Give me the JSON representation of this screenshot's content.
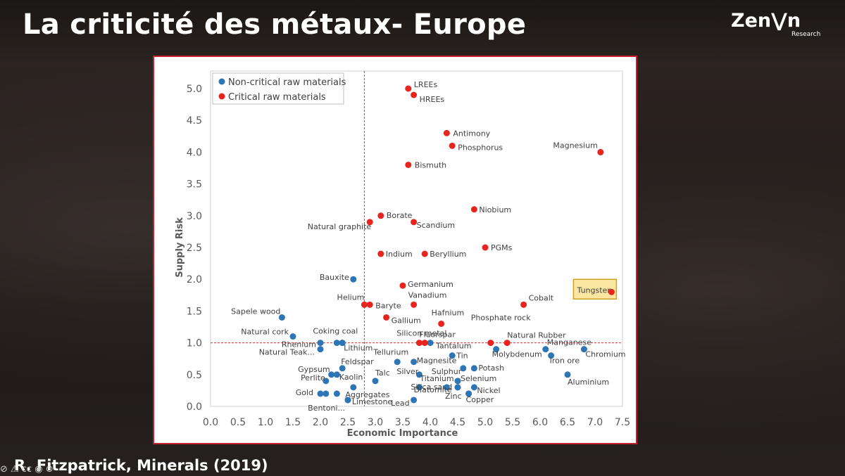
{
  "slide": {
    "title": "La criticité des métaux- Europe",
    "citation": "R. Fitzpatrick, Minerals (2019)",
    "logo_main": "Zen⋁n",
    "logo_sub": "Research",
    "cc_icons": "⊘ ⚠ cc ◉ ⊙"
  },
  "chart_data": {
    "type": "scatter",
    "title": "",
    "xlabel": "Economic Importance",
    "ylabel": "Supply Risk",
    "xlim": [
      0,
      7.5
    ],
    "ylim": [
      0,
      5.0
    ],
    "xticks": [
      "0.0",
      "0.5",
      "1.0",
      "1.5",
      "2.0",
      "2.5",
      "3.0",
      "3.5",
      "4.0",
      "4.5",
      "5.0",
      "5.5",
      "6.0",
      "6.5",
      "7.0",
      "7.5"
    ],
    "yticks": [
      "0.0",
      "0.5",
      "1.0",
      "1.5",
      "2.0",
      "2.5",
      "3.0",
      "3.5",
      "4.0",
      "4.5",
      "5.0"
    ],
    "thresholds": {
      "x": 2.8,
      "y": 1.0
    },
    "legend": [
      "Non-critical raw materials",
      "Critical raw materials"
    ],
    "colors": {
      "non_critical": "#2e75b6",
      "critical": "#e8241f",
      "threshold": "#d9302b",
      "highlight_fill": "#fbe6a2",
      "highlight_border": "#c9a227"
    },
    "highlight": "Tungsten",
    "series": [
      {
        "name": "Critical raw materials",
        "points": [
          {
            "label": "LREEs",
            "x": 3.6,
            "y": 5.0
          },
          {
            "label": "HREEs",
            "x": 3.7,
            "y": 4.9
          },
          {
            "label": "Antimony",
            "x": 4.3,
            "y": 4.3
          },
          {
            "label": "Phosphorus",
            "x": 4.4,
            "y": 4.1
          },
          {
            "label": "Magnesium",
            "x": 7.1,
            "y": 4.0
          },
          {
            "label": "Bismuth",
            "x": 3.6,
            "y": 3.8
          },
          {
            "label": "Niobium",
            "x": 4.8,
            "y": 3.1
          },
          {
            "label": "Borate",
            "x": 3.1,
            "y": 3.0
          },
          {
            "label": "Natural graphite",
            "x": 2.9,
            "y": 2.9
          },
          {
            "label": "Scandium",
            "x": 3.7,
            "y": 2.9
          },
          {
            "label": "PGMs",
            "x": 5.0,
            "y": 2.5
          },
          {
            "label": "Indium",
            "x": 3.1,
            "y": 2.4
          },
          {
            "label": "Beryllium",
            "x": 3.9,
            "y": 2.4
          },
          {
            "label": "Germanium",
            "x": 3.5,
            "y": 1.9
          },
          {
            "label": "Tungsten",
            "x": 7.3,
            "y": 1.8
          },
          {
            "label": "Cobalt",
            "x": 5.7,
            "y": 1.6
          },
          {
            "label": "Helium",
            "x": 2.8,
            "y": 1.6
          },
          {
            "label": "Baryte",
            "x": 2.9,
            "y": 1.6
          },
          {
            "label": "Vanadium",
            "x": 3.7,
            "y": 1.6
          },
          {
            "label": "Gallium",
            "x": 3.2,
            "y": 1.4
          },
          {
            "label": "Hafnium",
            "x": 4.2,
            "y": 1.3
          },
          {
            "label": "Silicon metal",
            "x": 3.8,
            "y": 1.0
          },
          {
            "label": "Fluorspar",
            "x": 3.9,
            "y": 1.0
          },
          {
            "label": "Phosphate rock",
            "x": 5.1,
            "y": 1.0
          },
          {
            "label": "Natural Rubber",
            "x": 5.4,
            "y": 1.0
          }
        ]
      },
      {
        "name": "Non-critical raw materials",
        "points": [
          {
            "label": "Bauxite",
            "x": 2.6,
            "y": 2.0
          },
          {
            "label": "Sapele wood",
            "x": 1.3,
            "y": 1.4
          },
          {
            "label": "Natural cork",
            "x": 1.5,
            "y": 1.1
          },
          {
            "label": "Coking coal",
            "x": 2.3,
            "y": 1.0
          },
          {
            "label": "Rhenium",
            "x": 2.0,
            "y": 1.0
          },
          {
            "label": "",
            "x": 2.4,
            "y": 1.0
          },
          {
            "label": "Lithium",
            "x": 2.4,
            "y": 1.0
          },
          {
            "label": "Natural Teak...",
            "x": 2.0,
            "y": 0.9
          },
          {
            "label": "Tantalum",
            "x": 4.0,
            "y": 1.0
          },
          {
            "label": "Molybdenum",
            "x": 5.2,
            "y": 0.9
          },
          {
            "label": "Manganese",
            "x": 6.1,
            "y": 0.9
          },
          {
            "label": "Chromium",
            "x": 6.8,
            "y": 0.9
          },
          {
            "label": "Iron ore",
            "x": 6.2,
            "y": 0.8
          },
          {
            "label": "Tin",
            "x": 4.4,
            "y": 0.8
          },
          {
            "label": "Tellurium",
            "x": 3.4,
            "y": 0.7
          },
          {
            "label": "Magnesite",
            "x": 3.7,
            "y": 0.7
          },
          {
            "label": "Feldspar",
            "x": 2.4,
            "y": 0.6
          },
          {
            "label": "Sulphur",
            "x": 4.6,
            "y": 0.6
          },
          {
            "label": "Potash",
            "x": 4.8,
            "y": 0.6
          },
          {
            "label": "Gypsum",
            "x": 2.2,
            "y": 0.5
          },
          {
            "label": "",
            "x": 2.3,
            "y": 0.5
          },
          {
            "label": "Silver",
            "x": 3.8,
            "y": 0.5
          },
          {
            "label": "Aluminium",
            "x": 6.5,
            "y": 0.5
          },
          {
            "label": "Talc",
            "x": 3.0,
            "y": 0.4
          },
          {
            "label": "Perlite",
            "x": 2.1,
            "y": 0.4
          },
          {
            "label": "Selenium",
            "x": 4.5,
            "y": 0.4
          },
          {
            "label": "Kaolin",
            "x": 2.6,
            "y": 0.3
          },
          {
            "label": "Silica sand",
            "x": 3.8,
            "y": 0.3
          },
          {
            "label": "Titanium",
            "x": 4.3,
            "y": 0.3
          },
          {
            "label": "Nickel",
            "x": 4.8,
            "y": 0.3
          },
          {
            "label": "",
            "x": 4.5,
            "y": 0.3
          },
          {
            "label": "Gold",
            "x": 2.0,
            "y": 0.2
          },
          {
            "label": "",
            "x": 2.1,
            "y": 0.2
          },
          {
            "label": "Aggregates",
            "x": 2.3,
            "y": 0.2
          },
          {
            "label": "Diatomite",
            "x": 4.7,
            "y": 0.2
          },
          {
            "label": "Bentoni...",
            "x": 2.5,
            "y": 0.1
          },
          {
            "label": "Limestone",
            "x": 2.5,
            "y": 0.1
          },
          {
            "label": "Lead",
            "x": 3.7,
            "y": 0.1
          },
          {
            "label": "Zinc",
            "x": 4.5,
            "y": 0.3
          },
          {
            "label": "Copper",
            "x": 4.7,
            "y": 0.2
          }
        ]
      }
    ]
  }
}
